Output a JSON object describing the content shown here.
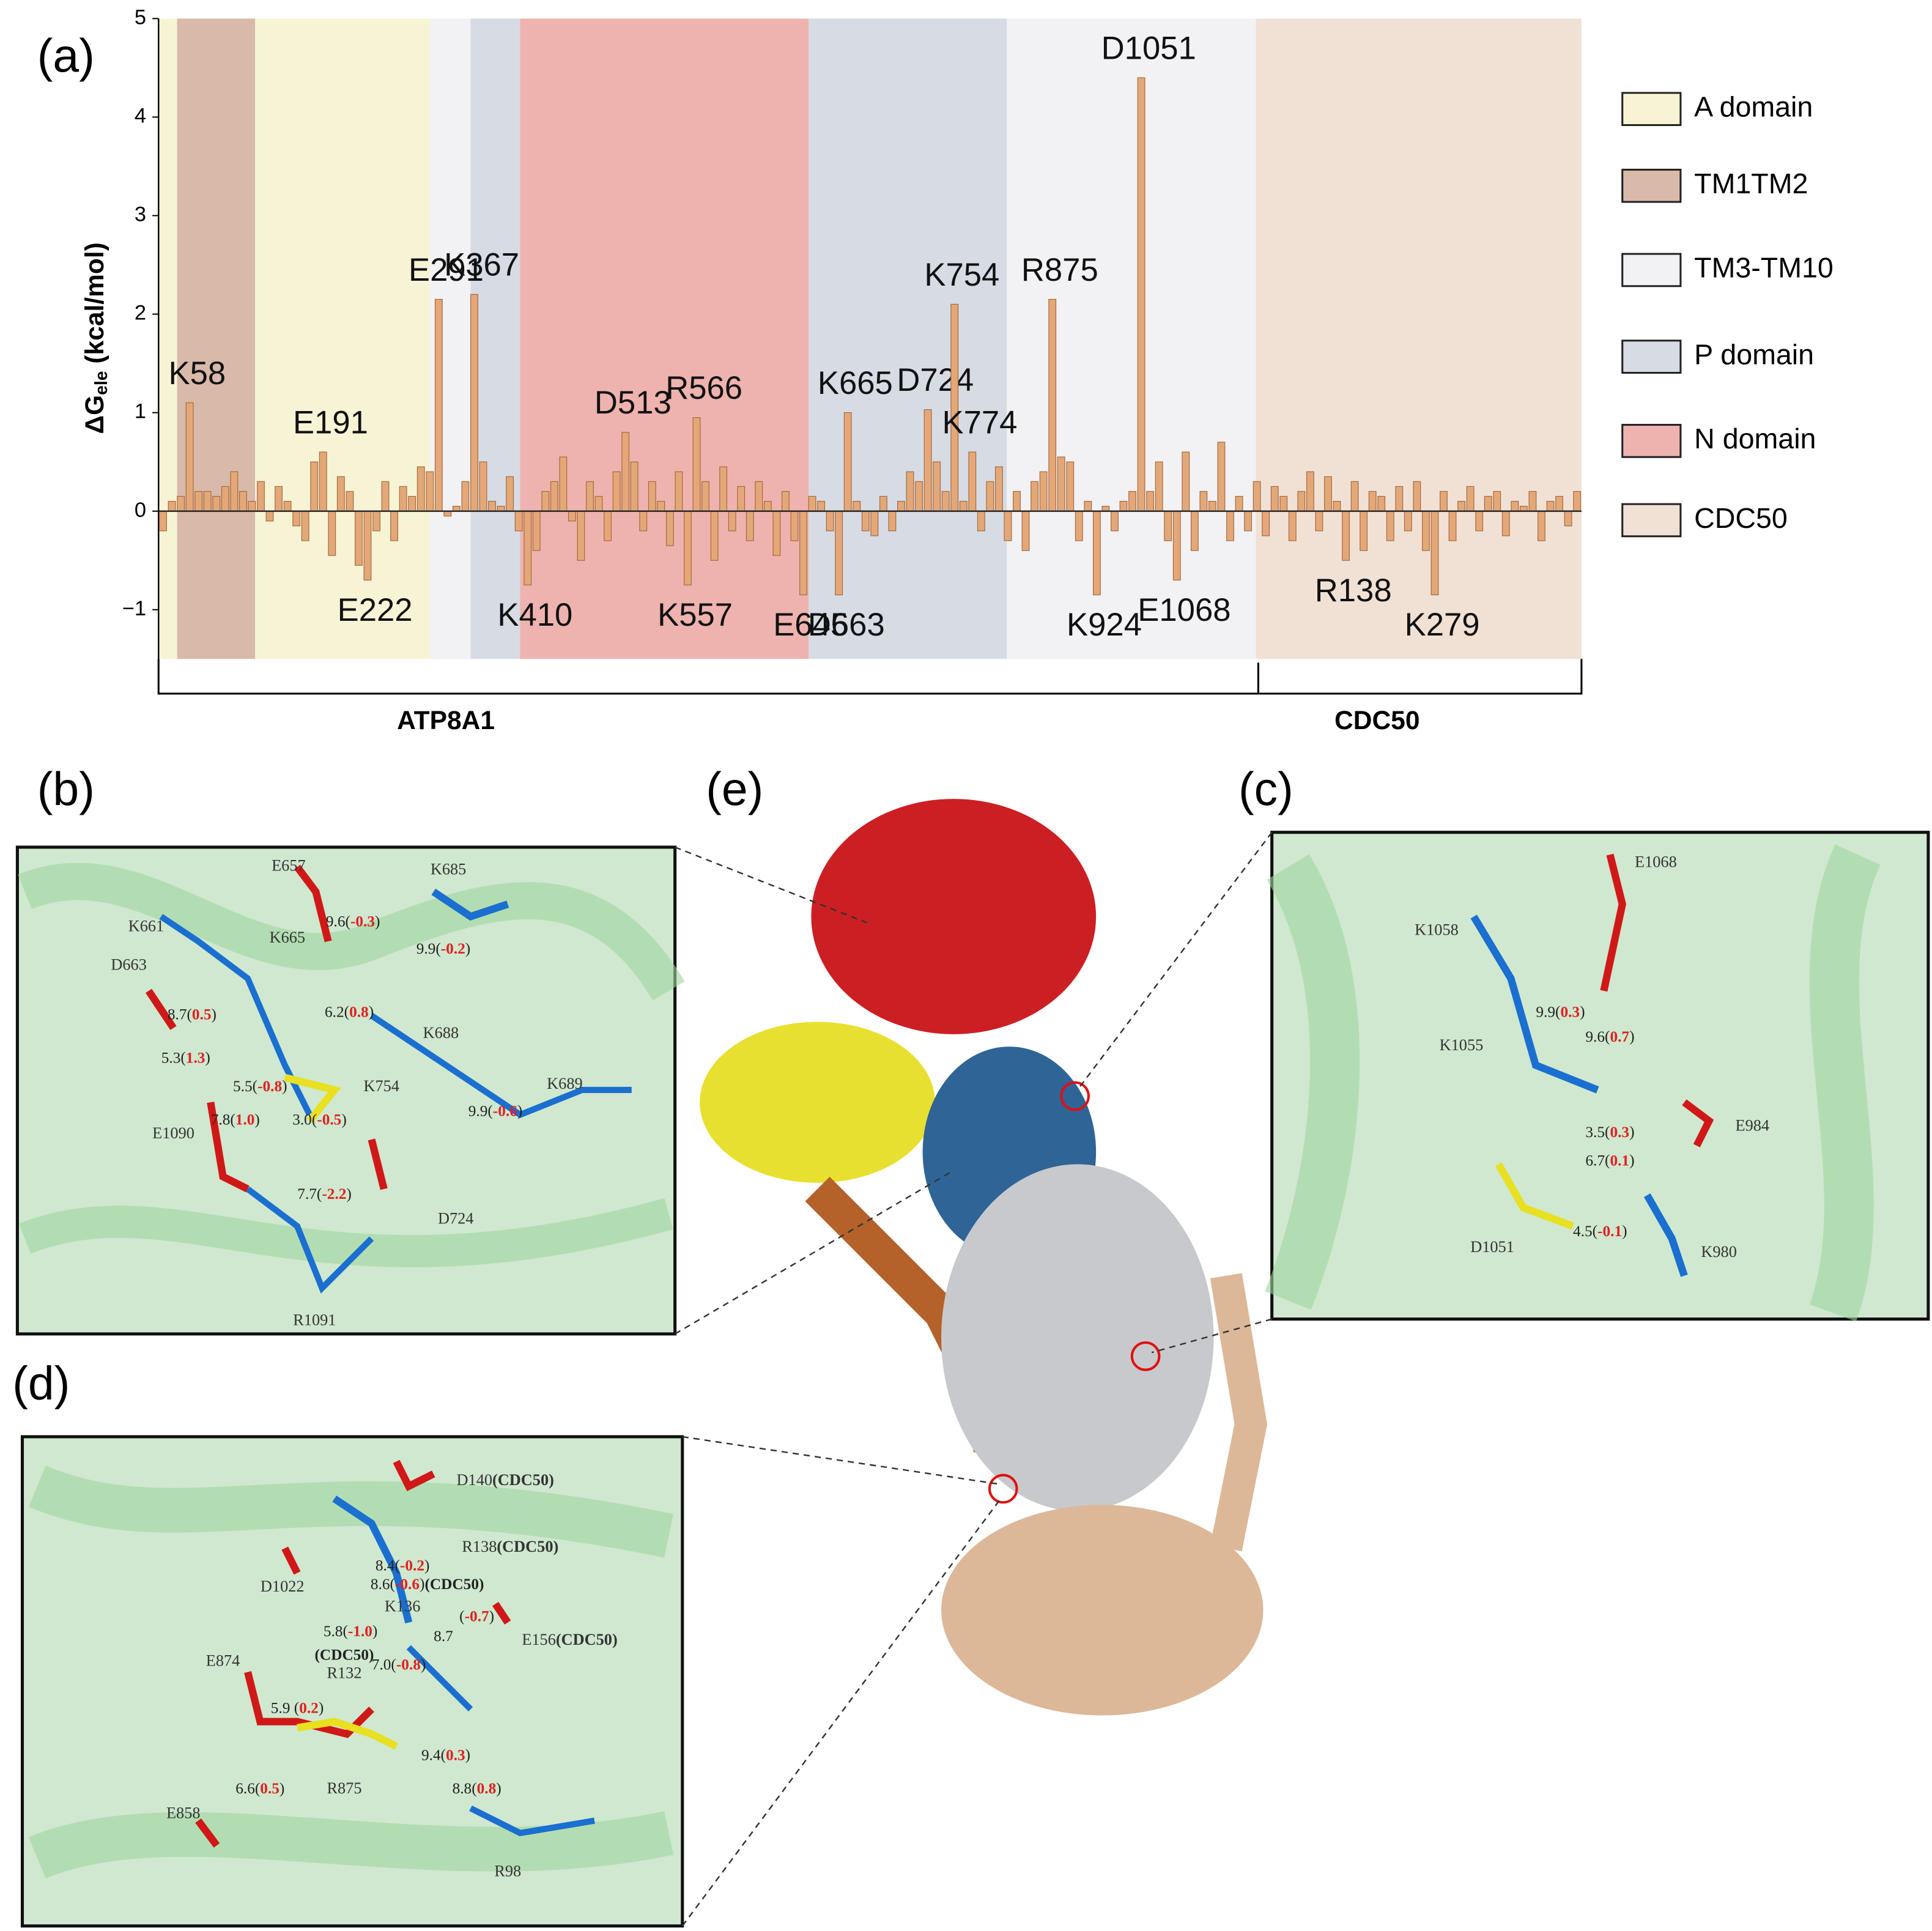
{
  "chart_data": {
    "type": "bar",
    "y_label": "ΔG",
    "y_label_subscript": "ele",
    "y_label_unit": "(kcal/mol)",
    "ylim": [
      -1.5,
      5
    ],
    "yticks": [
      {
        "value": -1,
        "label": "−1"
      },
      0,
      1,
      2,
      3,
      4,
      5
    ],
    "color": "#e4a878",
    "categories": [
      null,
      null,
      null,
      "K58",
      null,
      null,
      null,
      null,
      null,
      null,
      null,
      null,
      null,
      null,
      null,
      null,
      null,
      null,
      "E191",
      null,
      null,
      null,
      null,
      "E222",
      null,
      null,
      null,
      null,
      null,
      null,
      null,
      "E291",
      null,
      null,
      null,
      "K367",
      null,
      null,
      null,
      null,
      null,
      "K410",
      null,
      null,
      null,
      null,
      null,
      null,
      null,
      null,
      null,
      null,
      "D513",
      null,
      null,
      null,
      null,
      null,
      null,
      "K557",
      "R566",
      null,
      null,
      null,
      null,
      null,
      null,
      null,
      null,
      null,
      null,
      null,
      "E645",
      null,
      null,
      null,
      "D663",
      "K665",
      null,
      null,
      null,
      null,
      null,
      null,
      null,
      null,
      "D724",
      null,
      null,
      "K754",
      null,
      "K774",
      null,
      null,
      null,
      null,
      null,
      null,
      null,
      null,
      "R875",
      null,
      null,
      null,
      null,
      "K924",
      null,
      null,
      null,
      null,
      "D1051",
      null,
      null,
      null,
      "E1068",
      null,
      null,
      null,
      null,
      null,
      null,
      null,
      null,
      null,
      null,
      null,
      null,
      null,
      null,
      null,
      null,
      null,
      null,
      "R138",
      null,
      null,
      null,
      null,
      null,
      null,
      null,
      null,
      null,
      "K279",
      null,
      null,
      null,
      null,
      null,
      null,
      null,
      null,
      null,
      null,
      null,
      null,
      null,
      null,
      null,
      null
    ],
    "values": [
      -0.2,
      0.1,
      0.15,
      1.1,
      0.2,
      0.2,
      0.15,
      0.25,
      0.4,
      0.2,
      0.1,
      0.3,
      -0.1,
      0.25,
      0.1,
      -0.15,
      -0.3,
      0.5,
      0.6,
      -0.45,
      0.35,
      0.2,
      -0.55,
      -0.7,
      -0.2,
      0.3,
      -0.3,
      0.25,
      0.15,
      0.45,
      0.4,
      2.15,
      -0.05,
      0.05,
      0.3,
      2.2,
      0.5,
      0.1,
      0.05,
      0.35,
      -0.2,
      -0.75,
      -0.4,
      0.2,
      0.3,
      0.55,
      -0.1,
      -0.5,
      0.3,
      0.15,
      -0.3,
      0.4,
      0.8,
      0.5,
      -0.2,
      0.3,
      0.1,
      -0.35,
      0.4,
      -0.75,
      0.95,
      0.3,
      -0.5,
      0.45,
      -0.2,
      0.25,
      -0.3,
      0.3,
      0.1,
      -0.45,
      0.2,
      -0.3,
      -0.85,
      0.15,
      0.1,
      -0.2,
      -0.85,
      1.0,
      0.1,
      -0.2,
      -0.25,
      0.15,
      -0.2,
      0.1,
      0.4,
      0.3,
      1.03,
      0.5,
      0.2,
      2.1,
      0.1,
      0.6,
      -0.2,
      0.3,
      0.45,
      -0.3,
      0.2,
      -0.4,
      0.3,
      0.4,
      2.15,
      0.55,
      0.5,
      -0.3,
      0.1,
      -0.85,
      0.05,
      -0.2,
      0.1,
      0.2,
      4.4,
      0.2,
      0.5,
      -0.3,
      -0.7,
      0.6,
      -0.4,
      0.2,
      0.1,
      0.7,
      -0.3,
      0.15,
      -0.2,
      0.3,
      -0.25,
      0.25,
      0.15,
      -0.3,
      0.2,
      0.4,
      -0.2,
      0.35,
      0.1,
      -0.5,
      0.3,
      -0.4,
      0.2,
      0.15,
      -0.3,
      0.25,
      -0.2,
      0.3,
      -0.4,
      -0.85,
      0.2,
      -0.3,
      0.1,
      0.25,
      -0.2,
      0.15,
      0.2,
      -0.25,
      0.1,
      0.05,
      0.2,
      -0.3,
      0.1,
      0.15,
      -0.15,
      0.2
    ],
    "legend": [
      {
        "name": "A domain",
        "color": "#f6f4d4"
      },
      {
        "name": "TM1TM2",
        "color": "#d9b9a9"
      },
      {
        "name": "TM3-TM10",
        "color": "#f2f1f3"
      },
      {
        "name": "P domain",
        "color": "#d6dbe4"
      },
      {
        "name": "N domain",
        "color": "#eeb3ae"
      },
      {
        "name": "CDC50",
        "color": "#f1e1d5"
      }
    ],
    "group_labels": [
      "ATP8A1",
      "CDC50"
    ]
  },
  "panel_labels": [
    "(a)",
    "(b)",
    "(c)",
    "(d)",
    "(e)"
  ],
  "panel_b": {
    "residues": [
      "E657",
      "K685",
      "K661",
      "K665",
      "D663",
      "K688",
      "K754",
      "K689",
      "E1090",
      "D724",
      "R1091"
    ],
    "distances": [
      "9.6(-0.3)",
      "9.9(-0.2)",
      "8.7(0.5)",
      "6.2(0.8)",
      "5.3(1.3)",
      "5.5(-0.8)",
      "7.8(1.0)",
      "3.0(-0.5)",
      "9.9(-0.6)",
      "7.7(-2.2)"
    ]
  },
  "panel_c": {
    "residues": [
      "E1068",
      "K1058",
      "K1055",
      "E984",
      "D1051",
      "K980"
    ],
    "distances": [
      "9.9(0.3)",
      "9.6(0.7)",
      "3.5(0.3)",
      "6.7(0.1)",
      "4.5(-0.1)"
    ]
  },
  "panel_d": {
    "residues": [
      "D140(CDC50)",
      "R138(CDC50)",
      "D1022",
      "K136",
      "E156(CDC50)",
      "E874",
      "R132",
      "R875",
      "E858",
      "R98"
    ],
    "distances": [
      "8.4(-0.2)",
      "8.6(-0.6)(CDC50)",
      "(-0.7)",
      "5.8(-1.0)",
      "8.7",
      "(CDC50)",
      "7.0(-0.8)",
      "5.9 (0.2)",
      "9.4(0.3)",
      "6.6(0.5)",
      "8.8(0.8)"
    ]
  }
}
